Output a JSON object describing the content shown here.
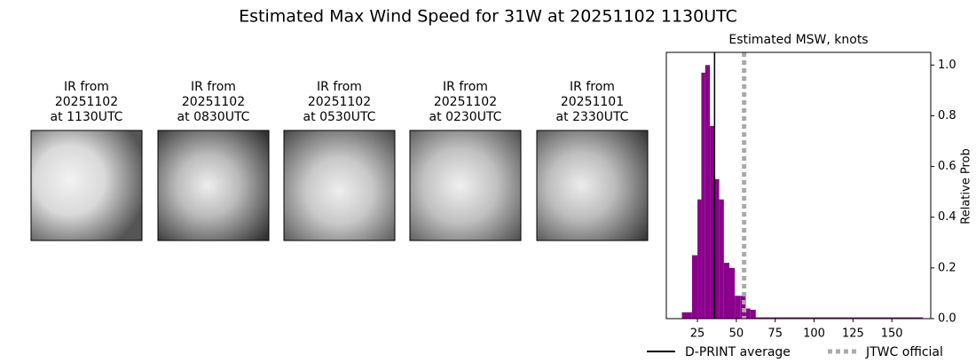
{
  "title": "Estimated Max Wind Speed for 31W at 20251102 1130UTC",
  "panels": [
    {
      "lines": [
        "IR from",
        "20251102",
        "at 1130UTC"
      ]
    },
    {
      "lines": [
        "IR from",
        "20251102",
        "at 0830UTC"
      ]
    },
    {
      "lines": [
        "IR from",
        "20251102",
        "at 0530UTC"
      ]
    },
    {
      "lines": [
        "IR from",
        "20251102",
        "at 0230UTC"
      ]
    },
    {
      "lines": [
        "IR from",
        "20251101",
        "at 2330UTC"
      ]
    }
  ],
  "chart_data": {
    "type": "histogram",
    "title": "Estimated MSW, knots",
    "y_label": "Relative Prob",
    "bins": [
      15,
      21.5,
      25,
      27.5,
      30,
      33,
      36,
      39,
      42,
      45.5,
      49,
      52.5,
      56,
      59,
      62.5,
      170
    ],
    "values": [
      0.025,
      0.25,
      0.47,
      0.97,
      1.0,
      0.76,
      0.55,
      0.47,
      0.22,
      0.2,
      0.09,
      0.09,
      0.04,
      0.035,
      0.005
    ],
    "color": "#8b008b",
    "xlim": [
      5,
      175
    ],
    "xticks": [
      25,
      50,
      75,
      100,
      125,
      150
    ],
    "ylim": [
      0,
      1.05
    ],
    "yticks": [
      {
        "value": 0,
        "label": "0.0"
      },
      0.2,
      0.4,
      0.6,
      0.8,
      {
        "value": 1,
        "label": "1.0"
      }
    ],
    "reference_lines": [
      {
        "name": "D-PRINT average",
        "value": 36,
        "color": "#000000",
        "style": "solid"
      },
      {
        "name": "JTWC official",
        "value": 55,
        "color": "#aaaaaa",
        "style": "dotted"
      }
    ]
  }
}
